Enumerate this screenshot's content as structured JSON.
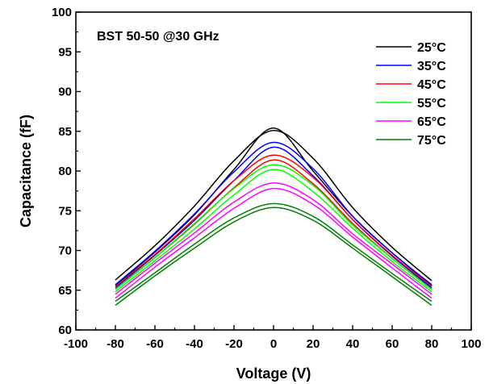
{
  "chart_data": {
    "type": "line",
    "annotation": "BST 50-50 @30 GHz",
    "xlabel": "Voltage (V)",
    "ylabel": "Capacitance (fF)",
    "xlim": [
      -100,
      100
    ],
    "ylim": [
      60,
      100
    ],
    "xticks": [
      -100,
      -80,
      -60,
      -40,
      -20,
      0,
      20,
      40,
      60,
      80,
      100
    ],
    "yticks": [
      60,
      65,
      70,
      75,
      80,
      85,
      90,
      95,
      100
    ],
    "legend_position": "top-right",
    "grid": false,
    "series": [
      {
        "name": "25°C",
        "color": "#000000",
        "sweep_up": {
          "x": [
            -80,
            -60,
            -40,
            -20,
            0,
            20,
            40,
            60,
            80
          ],
          "y": [
            65.6,
            69.8,
            74.5,
            80.2,
            85.4,
            80.0,
            74.3,
            69.7,
            65.6
          ]
        },
        "sweep_down": {
          "x": [
            -80,
            -60,
            -40,
            -20,
            0,
            20,
            40,
            60,
            80
          ],
          "y": [
            66.3,
            70.6,
            75.6,
            81.3,
            85.1,
            81.6,
            75.4,
            70.4,
            66.2
          ]
        }
      },
      {
        "name": "35°C",
        "color": "#0000ff",
        "sweep_up": {
          "x": [
            -80,
            -60,
            -40,
            -20,
            0,
            20,
            40,
            60,
            80
          ],
          "y": [
            65.3,
            69.4,
            73.8,
            78.8,
            83.0,
            79.4,
            73.9,
            69.3,
            65.3
          ]
        },
        "sweep_down": {
          "x": [
            -80,
            -60,
            -40,
            -20,
            0,
            20,
            40,
            60,
            80
          ],
          "y": [
            65.7,
            69.9,
            74.6,
            79.9,
            83.6,
            80.3,
            74.3,
            69.7,
            65.7
          ]
        }
      },
      {
        "name": "45°C",
        "color": "#ff0000",
        "sweep_up": {
          "x": [
            -80,
            -60,
            -40,
            -20,
            0,
            20,
            40,
            60,
            80
          ],
          "y": [
            65.1,
            69.1,
            73.3,
            77.9,
            81.4,
            78.4,
            73.4,
            69.0,
            65.1
          ]
        },
        "sweep_down": {
          "x": [
            -80,
            -60,
            -40,
            -20,
            0,
            20,
            40,
            60,
            80
          ],
          "y": [
            65.5,
            69.5,
            74.0,
            78.8,
            82.0,
            79.2,
            73.9,
            69.4,
            65.5
          ]
        }
      },
      {
        "name": "55°C",
        "color": "#00ff00",
        "sweep_up": {
          "x": [
            -80,
            -60,
            -40,
            -20,
            0,
            20,
            40,
            60,
            80
          ],
          "y": [
            64.8,
            68.7,
            72.7,
            77.0,
            80.2,
            77.4,
            72.8,
            68.6,
            64.8
          ]
        },
        "sweep_down": {
          "x": [
            -80,
            -60,
            -40,
            -20,
            0,
            20,
            40,
            60,
            80
          ],
          "y": [
            65.1,
            69.1,
            73.4,
            77.8,
            80.8,
            78.2,
            73.2,
            69.0,
            65.1
          ]
        }
      },
      {
        "name": "65°C",
        "color": "#ff00ff",
        "sweep_up": {
          "x": [
            -80,
            -60,
            -40,
            -20,
            0,
            20,
            40,
            60,
            80
          ],
          "y": [
            64.0,
            67.9,
            71.6,
            75.3,
            77.8,
            75.8,
            71.7,
            67.8,
            64.0
          ]
        },
        "sweep_down": {
          "x": [
            -80,
            -60,
            -40,
            -20,
            0,
            20,
            40,
            60,
            80
          ],
          "y": [
            64.5,
            68.4,
            72.2,
            76.1,
            78.5,
            76.4,
            72.1,
            68.3,
            64.5
          ]
        }
      },
      {
        "name": "75°C",
        "color": "#008000",
        "sweep_up": {
          "x": [
            -80,
            -60,
            -40,
            -20,
            0,
            20,
            40,
            60,
            80
          ],
          "y": [
            63.1,
            66.8,
            70.3,
            73.6,
            75.4,
            73.8,
            70.3,
            66.7,
            63.1
          ]
        },
        "sweep_down": {
          "x": [
            -80,
            -60,
            -40,
            -20,
            0,
            20,
            40,
            60,
            80
          ],
          "y": [
            63.6,
            67.2,
            70.8,
            74.1,
            75.9,
            74.3,
            70.7,
            67.1,
            63.6
          ]
        }
      }
    ]
  }
}
